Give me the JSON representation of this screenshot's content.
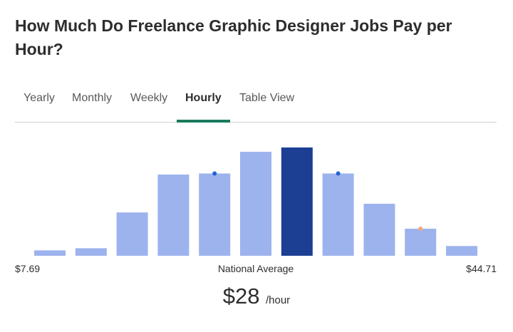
{
  "page": {
    "title": "How Much Do Freelance Graphic Designer Jobs Pay per Hour?"
  },
  "tabs": [
    {
      "label": "Yearly",
      "active": false
    },
    {
      "label": "Monthly",
      "active": false
    },
    {
      "label": "Weekly",
      "active": false
    },
    {
      "label": "Hourly",
      "active": true
    },
    {
      "label": "Table View",
      "active": false
    }
  ],
  "colors": {
    "bar": "#9db3ee",
    "bar_highlight": "#1c3f94",
    "marker_blue": "#1f63d6",
    "marker_orange": "#f3a87a",
    "tab_underline": "#1a7a5c"
  },
  "chart_data": {
    "type": "bar",
    "values": [
      0.05,
      0.07,
      0.4,
      0.75,
      0.76,
      0.96,
      1.0,
      0.76,
      0.48,
      0.25,
      0.09
    ],
    "highlight_index": 6,
    "markers": [
      {
        "index": 4,
        "color": "blue"
      },
      {
        "index": 7,
        "color": "blue"
      },
      {
        "index": 9,
        "color": "orange"
      }
    ],
    "min_label": "$7.69",
    "max_label": "$44.71",
    "center_label": "National Average"
  },
  "average": {
    "amount": "$28",
    "unit": "/hour"
  }
}
